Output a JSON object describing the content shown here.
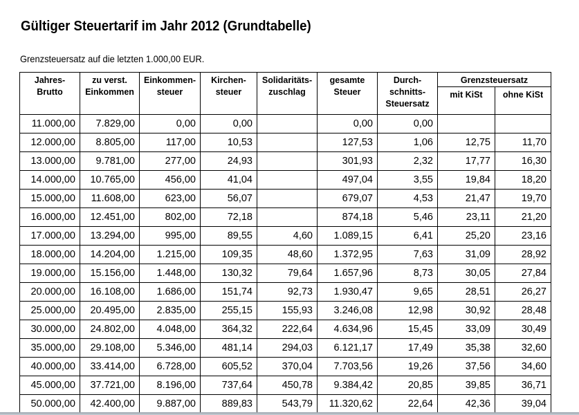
{
  "title": "Gültiger Steuertarif im Jahr 2012 (Grundtabelle)",
  "subtitle": "Grenzsteuersatz auf die letzten 1.000,00 EUR.",
  "table": {
    "headers": {
      "brutto": [
        "Jahres-",
        "Brutto"
      ],
      "einkommen": [
        "zu verst.",
        "Einkommen"
      ],
      "est": [
        "Einkommen-",
        "steuer"
      ],
      "kist": [
        "Kirchen-",
        "steuer"
      ],
      "soli": [
        "Solidaritäts-",
        "zuschlag"
      ],
      "gesamt": [
        "gesamte",
        "Steuer"
      ],
      "durchschnitt": [
        "Durch-",
        "schnitts-",
        "Steuersatz"
      ],
      "grenz_group": "Grenzsteuersatz",
      "grenz_mit": "mit KiSt",
      "grenz_ohne": "ohne KiSt"
    },
    "rows": [
      [
        "11.000,00",
        "7.829,00",
        "0,00",
        "0,00",
        "",
        "0,00",
        "0,00",
        "",
        ""
      ],
      [
        "12.000,00",
        "8.805,00",
        "117,00",
        "10,53",
        "",
        "127,53",
        "1,06",
        "12,75",
        "11,70"
      ],
      [
        "13.000,00",
        "9.781,00",
        "277,00",
        "24,93",
        "",
        "301,93",
        "2,32",
        "17,77",
        "16,30"
      ],
      [
        "14.000,00",
        "10.765,00",
        "456,00",
        "41,04",
        "",
        "497,04",
        "3,55",
        "19,84",
        "18,20"
      ],
      [
        "15.000,00",
        "11.608,00",
        "623,00",
        "56,07",
        "",
        "679,07",
        "4,53",
        "21,47",
        "19,70"
      ],
      [
        "16.000,00",
        "12.451,00",
        "802,00",
        "72,18",
        "",
        "874,18",
        "5,46",
        "23,11",
        "21,20"
      ],
      [
        "17.000,00",
        "13.294,00",
        "995,00",
        "89,55",
        "4,60",
        "1.089,15",
        "6,41",
        "25,20",
        "23,16"
      ],
      [
        "18.000,00",
        "14.204,00",
        "1.215,00",
        "109,35",
        "48,60",
        "1.372,95",
        "7,63",
        "31,09",
        "28,92"
      ],
      [
        "19.000,00",
        "15.156,00",
        "1.448,00",
        "130,32",
        "79,64",
        "1.657,96",
        "8,73",
        "30,05",
        "27,84"
      ],
      [
        "20.000,00",
        "16.108,00",
        "1.686,00",
        "151,74",
        "92,73",
        "1.930,47",
        "9,65",
        "28,51",
        "26,27"
      ],
      [
        "25.000,00",
        "20.495,00",
        "2.835,00",
        "255,15",
        "155,93",
        "3.246,08",
        "12,98",
        "30,92",
        "28,48"
      ],
      [
        "30.000,00",
        "24.802,00",
        "4.048,00",
        "364,32",
        "222,64",
        "4.634,96",
        "15,45",
        "33,09",
        "30,49"
      ],
      [
        "35.000,00",
        "29.108,00",
        "5.346,00",
        "481,14",
        "294,03",
        "6.121,17",
        "17,49",
        "35,38",
        "32,60"
      ],
      [
        "40.000,00",
        "33.414,00",
        "6.728,00",
        "605,52",
        "370,04",
        "7.703,56",
        "19,26",
        "37,56",
        "34,60"
      ],
      [
        "45.000,00",
        "37.721,00",
        "8.196,00",
        "737,64",
        "450,78",
        "9.384,42",
        "20,85",
        "39,85",
        "36,71"
      ],
      [
        "50.000,00",
        "42.400,00",
        "9.887,00",
        "889,83",
        "543,79",
        "11.320,62",
        "22,64",
        "42,36",
        "39,04"
      ]
    ]
  }
}
